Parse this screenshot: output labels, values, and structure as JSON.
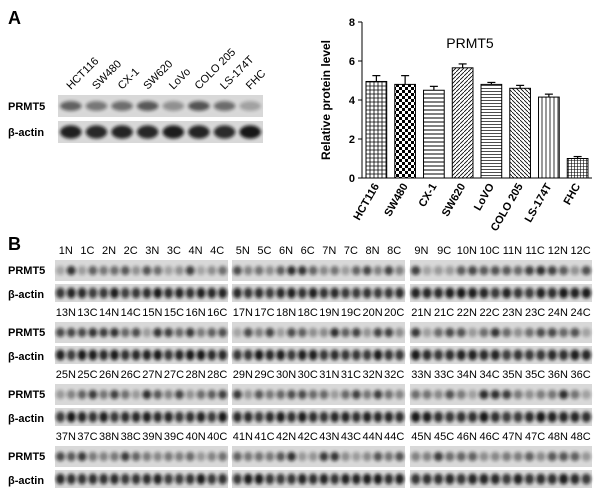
{
  "panel_a": {
    "label": "A",
    "lanes": [
      "HCT116",
      "SW480",
      "CX-1",
      "SW620",
      "LoVo",
      "COLO 205",
      "LS-174T",
      "FHC"
    ],
    "rows": [
      "PRMT5",
      "β-actin"
    ]
  },
  "chart_data": {
    "type": "bar",
    "title": "PRMT5",
    "y_label": "Relative protein level",
    "categories": [
      "HCT116",
      "SW480",
      "CX-1",
      "SW620",
      "LoVO",
      "COLO 205",
      "LS-174T",
      "FHC"
    ],
    "values": [
      4.95,
      4.8,
      4.5,
      5.65,
      4.8,
      4.6,
      4.15,
      1.0
    ],
    "errors": [
      0.3,
      0.45,
      0.2,
      0.2,
      0.1,
      0.15,
      0.15,
      0.1
    ],
    "color": "#000000",
    "ylim": [
      0,
      8
    ],
    "yticks": [
      0,
      2,
      4,
      6,
      8
    ]
  },
  "panel_b": {
    "label": "B",
    "rows": [
      "PRMT5",
      "β-actin"
    ],
    "groups": [
      [
        "1N",
        "1C",
        "2N",
        "2C",
        "3N",
        "3C",
        "4N",
        "4C"
      ],
      [
        "5N",
        "5C",
        "6N",
        "6C",
        "7N",
        "7C",
        "8N",
        "8C"
      ],
      [
        "9N",
        "9C",
        "10N",
        "10C",
        "11N",
        "11C",
        "12N",
        "12C"
      ],
      [
        "13N",
        "13C",
        "14N",
        "14C",
        "15N",
        "15C",
        "16N",
        "16C"
      ],
      [
        "17N",
        "17C",
        "18N",
        "18C",
        "19N",
        "19C",
        "20N",
        "20C"
      ],
      [
        "21N",
        "21C",
        "22N",
        "22C",
        "23N",
        "23C",
        "24N",
        "24C"
      ],
      [
        "25N",
        "25C",
        "26N",
        "26C",
        "27N",
        "27C",
        "28N",
        "28C"
      ],
      [
        "29N",
        "29C",
        "30N",
        "30C",
        "31N",
        "31C",
        "32N",
        "32C"
      ],
      [
        "33N",
        "33C",
        "34N",
        "34C",
        "35N",
        "35C",
        "36N",
        "36C"
      ],
      [
        "37N",
        "37C",
        "38N",
        "38C",
        "39N",
        "39C",
        "40N",
        "40C"
      ],
      [
        "41N",
        "41C",
        "42N",
        "42C",
        "43N",
        "43C",
        "44N",
        "44C"
      ],
      [
        "45N",
        "45C",
        "46N",
        "46C",
        "47N",
        "47C",
        "48N",
        "48C"
      ]
    ]
  }
}
